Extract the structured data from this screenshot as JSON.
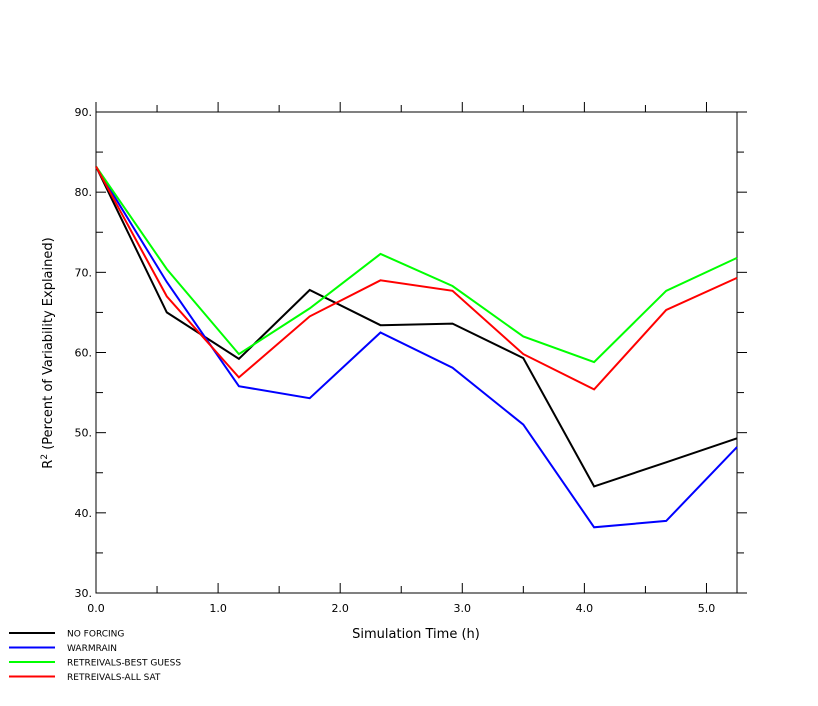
{
  "chart_data": {
    "type": "line",
    "title": "",
    "xlabel": "Simulation Time (h)",
    "ylabel": "R² (Percent of Variability Explained)",
    "xlim": [
      0.0,
      5.25
    ],
    "ylim": [
      30,
      90
    ],
    "x_ticks": [
      "0.0",
      "1.0",
      "2.0",
      "3.0",
      "4.0",
      "5.0"
    ],
    "y_ticks": [
      "30.",
      "40.",
      "50.",
      "60.",
      "70.",
      "80.",
      "90."
    ],
    "grid": false,
    "legend_position": "bottom-left",
    "x": [
      0.0,
      0.58,
      1.17,
      1.75,
      2.33,
      2.92,
      3.5,
      4.08,
      4.67,
      5.25
    ],
    "series": [
      {
        "name": "NO FORCING",
        "color": "#000000",
        "values": [
          83.2,
          65.0,
          59.2,
          67.8,
          63.4,
          63.6,
          59.3,
          43.3,
          46.3,
          49.3
        ]
      },
      {
        "name": "WARMRAIN",
        "color": "#0000ff",
        "values": [
          83.2,
          68.8,
          55.8,
          54.3,
          62.5,
          58.1,
          51.0,
          38.2,
          39.0,
          48.2
        ]
      },
      {
        "name": "RETREIVALS-BEST GUESS",
        "color": "#00ff00",
        "values": [
          83.2,
          70.4,
          59.8,
          65.5,
          72.3,
          68.3,
          62.0,
          58.8,
          67.7,
          71.8
        ]
      },
      {
        "name": "RETREIVALS-ALL SAT",
        "color": "#ff0000",
        "values": [
          83.2,
          67.0,
          56.9,
          64.5,
          69.0,
          67.7,
          59.8,
          55.4,
          65.3,
          69.3
        ]
      }
    ]
  }
}
